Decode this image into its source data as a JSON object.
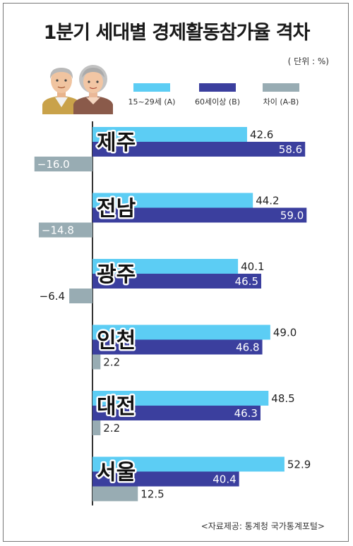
{
  "title": "1분기 세대별 경제활동참가율 격차",
  "unit": "( 단위 : %)",
  "source": "<자료제공: 통계청 국가통계포털>",
  "legend": [
    {
      "label": "15~29세 (A)",
      "color": "#5ccdf4"
    },
    {
      "label": "60세이상 (B)",
      "color": "#3b3f9e"
    },
    {
      "label": "차이 (A-B)",
      "color": "#98acb3"
    }
  ],
  "icons": [
    "elderly-man-icon",
    "elderly-woman-icon"
  ],
  "chart_data": {
    "type": "bar",
    "orientation": "horizontal",
    "categories": [
      "제주",
      "전남",
      "광주",
      "인천",
      "대전",
      "서울"
    ],
    "series": [
      {
        "name": "15~29세 (A)",
        "values": [
          42.6,
          44.2,
          40.1,
          49.0,
          48.5,
          52.9
        ],
        "labels": [
          "42.6",
          "44.2",
          "40.1",
          "49.0",
          "48.5",
          "52.9"
        ]
      },
      {
        "name": "60세이상 (B)",
        "values": [
          58.6,
          59.0,
          46.5,
          46.8,
          46.3,
          40.4
        ],
        "labels": [
          "58.6",
          "59.0",
          "46.5",
          "46.8",
          "46.3",
          "40.4"
        ]
      },
      {
        "name": "차이 (A-B)",
        "values": [
          -16.0,
          -14.8,
          -6.4,
          2.2,
          2.2,
          12.5
        ],
        "labels": [
          "−16.0",
          "−14.8",
          "−6.4",
          "2.2",
          "2.2",
          "12.5"
        ]
      }
    ]
  }
}
